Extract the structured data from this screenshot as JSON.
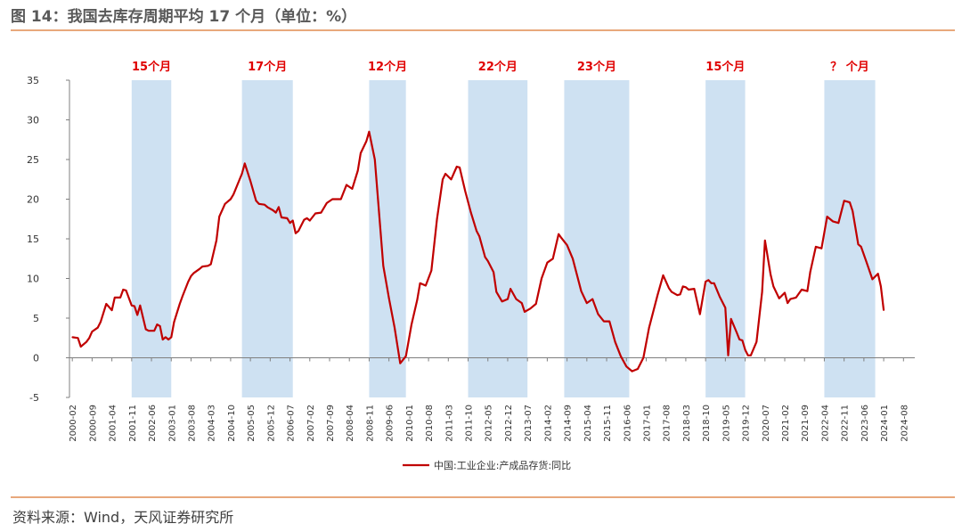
{
  "header": {
    "title": "图 14：我国去库存周期平均 17 个月（单位：%）"
  },
  "footer": {
    "source": "资料来源：Wind，天风证券研究所"
  },
  "colors": {
    "series_line": "#c00000",
    "band_fill": "#bdd7ee",
    "band_label": "#e00000",
    "rule": "#e8a87c"
  },
  "chart_data": {
    "type": "line",
    "title": "我国去库存周期平均 17 个月",
    "ylim": [
      -5,
      35
    ],
    "y_ticks": [
      -5,
      0,
      5,
      10,
      15,
      20,
      25,
      30,
      35
    ],
    "x_ticks": [
      "2000-02",
      "2000-09",
      "2001-04",
      "2001-11",
      "2002-06",
      "2003-01",
      "2003-08",
      "2004-03",
      "2004-10",
      "2005-05",
      "2005-12",
      "2006-07",
      "2007-02",
      "2007-09",
      "2008-04",
      "2008-11",
      "2009-06",
      "2010-01",
      "2010-08",
      "2011-03",
      "2011-10",
      "2012-05",
      "2012-12",
      "2013-07",
      "2014-02",
      "2014-09",
      "2015-04",
      "2015-11",
      "2016-06",
      "2017-01",
      "2017-08",
      "2018-03",
      "2018-10",
      "2019-05",
      "2019-12",
      "2020-07",
      "2021-02",
      "2021-09",
      "2022-04",
      "2022-11",
      "2023-06",
      "2024-01",
      "2024-08"
    ],
    "legend": "top-center-below-axis",
    "series": [
      {
        "name": "中国:工业企业:产成品存货:同比",
        "points": [
          [
            "2000-02",
            2.6
          ],
          [
            "2000-04",
            2.5
          ],
          [
            "2000-05",
            1.4
          ],
          [
            "2000-07",
            2.0
          ],
          [
            "2000-08",
            2.5
          ],
          [
            "2000-09",
            3.3
          ],
          [
            "2000-11",
            3.8
          ],
          [
            "2000-12",
            4.5
          ],
          [
            "2001-02",
            6.8
          ],
          [
            "2001-04",
            6.0
          ],
          [
            "2001-05",
            7.6
          ],
          [
            "2001-07",
            7.6
          ],
          [
            "2001-08",
            8.6
          ],
          [
            "2001-09",
            8.5
          ],
          [
            "2001-11",
            6.6
          ],
          [
            "2001-12",
            6.5
          ],
          [
            "2002-01",
            5.4
          ],
          [
            "2002-02",
            6.6
          ],
          [
            "2002-04",
            3.6
          ],
          [
            "2002-05",
            3.4
          ],
          [
            "2002-07",
            3.4
          ],
          [
            "2002-08",
            4.2
          ],
          [
            "2002-09",
            4.0
          ],
          [
            "2002-10",
            2.3
          ],
          [
            "2002-11",
            2.6
          ],
          [
            "2002-12",
            2.3
          ],
          [
            "2003-01",
            2.6
          ],
          [
            "2003-02",
            4.5
          ],
          [
            "2003-04",
            6.8
          ],
          [
            "2003-05",
            7.8
          ],
          [
            "2003-07",
            9.6
          ],
          [
            "2003-08",
            10.3
          ],
          [
            "2003-09",
            10.7
          ],
          [
            "2003-11",
            11.2
          ],
          [
            "2003-12",
            11.5
          ],
          [
            "2004-02",
            11.6
          ],
          [
            "2004-03",
            11.8
          ],
          [
            "2004-05",
            14.8
          ],
          [
            "2004-06",
            17.8
          ],
          [
            "2004-08",
            19.4
          ],
          [
            "2004-10",
            20.0
          ],
          [
            "2004-11",
            20.6
          ],
          [
            "2005-02",
            23.2
          ],
          [
            "2005-03",
            24.5
          ],
          [
            "2005-05",
            22.3
          ],
          [
            "2005-07",
            19.8
          ],
          [
            "2005-08",
            19.4
          ],
          [
            "2005-10",
            19.3
          ],
          [
            "2005-11",
            19.0
          ],
          [
            "2006-01",
            18.6
          ],
          [
            "2006-02",
            18.3
          ],
          [
            "2006-03",
            19.0
          ],
          [
            "2006-04",
            17.7
          ],
          [
            "2006-06",
            17.6
          ],
          [
            "2006-07",
            17.0
          ],
          [
            "2006-08",
            17.3
          ],
          [
            "2006-09",
            15.7
          ],
          [
            "2006-10",
            16.0
          ],
          [
            "2006-12",
            17.4
          ],
          [
            "2007-01",
            17.6
          ],
          [
            "2007-02",
            17.3
          ],
          [
            "2007-04",
            18.2
          ],
          [
            "2007-06",
            18.3
          ],
          [
            "2007-08",
            19.5
          ],
          [
            "2007-10",
            20.0
          ],
          [
            "2008-01",
            20.0
          ],
          [
            "2008-03",
            21.8
          ],
          [
            "2008-05",
            21.3
          ],
          [
            "2008-07",
            23.6
          ],
          [
            "2008-08",
            25.8
          ],
          [
            "2008-10",
            27.3
          ],
          [
            "2008-11",
            28.5
          ],
          [
            "2009-01",
            25.0
          ],
          [
            "2009-02",
            20.5
          ],
          [
            "2009-04",
            11.6
          ],
          [
            "2009-06",
            7.5
          ],
          [
            "2009-08",
            3.8
          ],
          [
            "2009-10",
            -0.7
          ],
          [
            "2009-12",
            0.2
          ],
          [
            "2010-02",
            4.2
          ],
          [
            "2010-04",
            7.3
          ],
          [
            "2010-05",
            9.4
          ],
          [
            "2010-07",
            9.1
          ],
          [
            "2010-09",
            11.0
          ],
          [
            "2010-11",
            17.5
          ],
          [
            "2011-01",
            22.5
          ],
          [
            "2011-02",
            23.2
          ],
          [
            "2011-04",
            22.5
          ],
          [
            "2011-06",
            24.1
          ],
          [
            "2011-07",
            24.0
          ],
          [
            "2011-09",
            21.0
          ],
          [
            "2011-11",
            18.3
          ],
          [
            "2012-01",
            16.0
          ],
          [
            "2012-02",
            15.3
          ],
          [
            "2012-04",
            12.7
          ],
          [
            "2012-05",
            12.2
          ],
          [
            "2012-07",
            10.8
          ],
          [
            "2012-08",
            8.3
          ],
          [
            "2012-10",
            7.1
          ],
          [
            "2012-12",
            7.4
          ],
          [
            "2013-01",
            8.7
          ],
          [
            "2013-03",
            7.4
          ],
          [
            "2013-05",
            6.9
          ],
          [
            "2013-06",
            5.8
          ],
          [
            "2013-08",
            6.2
          ],
          [
            "2013-10",
            6.8
          ],
          [
            "2013-12",
            10.0
          ],
          [
            "2014-02",
            12.0
          ],
          [
            "2014-04",
            12.5
          ],
          [
            "2014-06",
            15.6
          ],
          [
            "2014-07",
            15.1
          ],
          [
            "2014-09",
            14.2
          ],
          [
            "2014-11",
            12.5
          ],
          [
            "2015-02",
            8.4
          ],
          [
            "2015-04",
            6.9
          ],
          [
            "2015-06",
            7.4
          ],
          [
            "2015-08",
            5.5
          ],
          [
            "2015-10",
            4.6
          ],
          [
            "2015-12",
            4.6
          ],
          [
            "2016-02",
            2.0
          ],
          [
            "2016-04",
            0.2
          ],
          [
            "2016-06",
            -1.1
          ],
          [
            "2016-08",
            -1.7
          ],
          [
            "2016-10",
            -1.4
          ],
          [
            "2016-12",
            0.0
          ],
          [
            "2017-02",
            3.8
          ],
          [
            "2017-05",
            7.9
          ],
          [
            "2017-07",
            10.4
          ],
          [
            "2017-09",
            8.8
          ],
          [
            "2017-10",
            8.3
          ],
          [
            "2017-12",
            7.9
          ],
          [
            "2018-01",
            8.0
          ],
          [
            "2018-02",
            9.0
          ],
          [
            "2018-03",
            8.9
          ],
          [
            "2018-04",
            8.6
          ],
          [
            "2018-06",
            8.7
          ],
          [
            "2018-08",
            5.5
          ],
          [
            "2018-10",
            9.6
          ],
          [
            "2018-11",
            9.8
          ],
          [
            "2018-12",
            9.4
          ],
          [
            "2019-01",
            9.4
          ],
          [
            "2019-03",
            7.7
          ],
          [
            "2019-05",
            6.3
          ],
          [
            "2019-06",
            0.3
          ],
          [
            "2019-07",
            4.9
          ],
          [
            "2019-09",
            3.2
          ],
          [
            "2019-10",
            2.3
          ],
          [
            "2019-11",
            2.2
          ],
          [
            "2019-12",
            1.0
          ],
          [
            "2020-01",
            0.3
          ],
          [
            "2020-02",
            0.3
          ],
          [
            "2020-04",
            2.0
          ],
          [
            "2020-06",
            8.3
          ],
          [
            "2020-07",
            14.8
          ],
          [
            "2020-09",
            10.5
          ],
          [
            "2020-10",
            9.0
          ],
          [
            "2020-12",
            7.5
          ],
          [
            "2021-02",
            8.2
          ],
          [
            "2021-03",
            6.9
          ],
          [
            "2021-04",
            7.4
          ],
          [
            "2021-06",
            7.6
          ],
          [
            "2021-08",
            8.6
          ],
          [
            "2021-10",
            8.4
          ],
          [
            "2021-11",
            10.8
          ],
          [
            "2022-01",
            14.0
          ],
          [
            "2022-03",
            13.8
          ],
          [
            "2022-05",
            17.8
          ],
          [
            "2022-07",
            17.2
          ],
          [
            "2022-09",
            17.0
          ],
          [
            "2022-11",
            19.8
          ],
          [
            "2023-01",
            19.6
          ],
          [
            "2023-02",
            18.5
          ],
          [
            "2023-04",
            14.3
          ],
          [
            "2023-05",
            14.0
          ],
          [
            "2023-07",
            12.0
          ],
          [
            "2023-09",
            9.9
          ],
          [
            "2023-11",
            10.6
          ],
          [
            "2023-12",
            9.0
          ],
          [
            "2024-01",
            6.0
          ]
        ]
      }
    ],
    "bands": [
      {
        "start": "2001-11",
        "end": "2003-01",
        "label": "15个月"
      },
      {
        "start": "2005-02",
        "end": "2006-08",
        "label": "17个月"
      },
      {
        "start": "2008-11",
        "end": "2009-12",
        "label": "12个月"
      },
      {
        "start": "2011-10",
        "end": "2013-07",
        "label": "22个月"
      },
      {
        "start": "2014-08",
        "end": "2016-07",
        "label": "23个月"
      },
      {
        "start": "2018-10",
        "end": "2019-12",
        "label": "15个月"
      },
      {
        "start": "2022-04",
        "end": "2023-10",
        "label": "？ 个月"
      }
    ]
  }
}
